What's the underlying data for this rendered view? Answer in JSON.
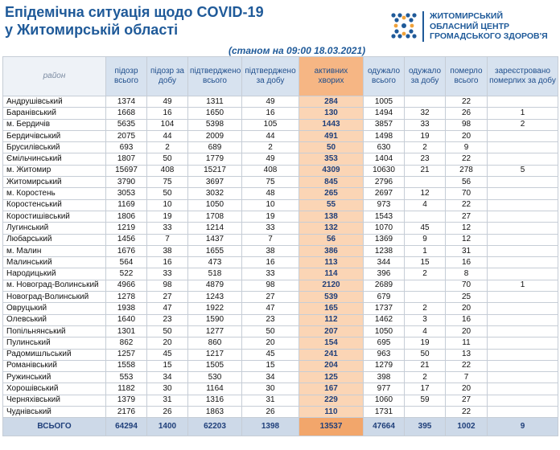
{
  "title_line1": "Епідемічна ситуація щодо COVID-19",
  "title_line2": "у Житомирській області",
  "org_line1": "ЖИТОМИРСЬКИЙ",
  "org_line2": "ОБЛАСНИЙ ЦЕНТР",
  "org_line3": "ГРОМАДСЬКОГО ЗДОРОВ'Я",
  "date": "(станом на 09:00 18.03.2021)",
  "colors": {
    "title": "#1f5a99",
    "header_bg": "#d7e2ef",
    "active_bg": "#fbd5b5",
    "active_header": "#f6b684",
    "total_bg": "#cdd9e8"
  },
  "headers": [
    "район",
    "підозр всього",
    "підозр за добу",
    "підтверджено всього",
    "підтверджено за добу",
    "активних хворих",
    "одужало всього",
    "одужало за добу",
    "померло всього",
    "зареєстровано померлих за добу"
  ],
  "rows": [
    [
      "Андрушівський",
      "1374",
      "49",
      "1311",
      "49",
      "284",
      "1005",
      "",
      "22",
      ""
    ],
    [
      "Баранівський",
      "1668",
      "16",
      "1650",
      "16",
      "130",
      "1494",
      "32",
      "26",
      "1"
    ],
    [
      "м. Бердичів",
      "5635",
      "104",
      "5398",
      "105",
      "1443",
      "3857",
      "33",
      "98",
      "2"
    ],
    [
      "Бердичівський",
      "2075",
      "44",
      "2009",
      "44",
      "491",
      "1498",
      "19",
      "20",
      ""
    ],
    [
      "Брусилівський",
      "693",
      "2",
      "689",
      "2",
      "50",
      "630",
      "2",
      "9",
      ""
    ],
    [
      "Ємільчинський",
      "1807",
      "50",
      "1779",
      "49",
      "353",
      "1404",
      "23",
      "22",
      ""
    ],
    [
      "м. Житомир",
      "15697",
      "408",
      "15217",
      "408",
      "4309",
      "10630",
      "21",
      "278",
      "5"
    ],
    [
      "Житомирський",
      "3790",
      "75",
      "3697",
      "75",
      "845",
      "2796",
      "",
      "56",
      ""
    ],
    [
      "м. Коростень",
      "3053",
      "50",
      "3032",
      "48",
      "265",
      "2697",
      "12",
      "70",
      ""
    ],
    [
      "Коростенський",
      "1169",
      "10",
      "1050",
      "10",
      "55",
      "973",
      "4",
      "22",
      ""
    ],
    [
      "Коростишівський",
      "1806",
      "19",
      "1708",
      "19",
      "138",
      "1543",
      "",
      "27",
      ""
    ],
    [
      "Лугинський",
      "1219",
      "33",
      "1214",
      "33",
      "132",
      "1070",
      "45",
      "12",
      ""
    ],
    [
      "Любарський",
      "1456",
      "7",
      "1437",
      "7",
      "56",
      "1369",
      "9",
      "12",
      ""
    ],
    [
      "м. Малин",
      "1676",
      "38",
      "1655",
      "38",
      "386",
      "1238",
      "1",
      "31",
      ""
    ],
    [
      "Малинський",
      "564",
      "16",
      "473",
      "16",
      "113",
      "344",
      "15",
      "16",
      ""
    ],
    [
      "Народицький",
      "522",
      "33",
      "518",
      "33",
      "114",
      "396",
      "2",
      "8",
      ""
    ],
    [
      "м. Новоград-Волинський",
      "4966",
      "98",
      "4879",
      "98",
      "2120",
      "2689",
      "",
      "70",
      "1"
    ],
    [
      "Новоград-Волинський",
      "1278",
      "27",
      "1243",
      "27",
      "539",
      "679",
      "",
      "25",
      ""
    ],
    [
      "Овруцький",
      "1938",
      "47",
      "1922",
      "47",
      "165",
      "1737",
      "2",
      "20",
      ""
    ],
    [
      "Олевський",
      "1640",
      "23",
      "1590",
      "23",
      "112",
      "1462",
      "3",
      "16",
      ""
    ],
    [
      "Попільнянський",
      "1301",
      "50",
      "1277",
      "50",
      "207",
      "1050",
      "4",
      "20",
      ""
    ],
    [
      "Пулинський",
      "862",
      "20",
      "860",
      "20",
      "154",
      "695",
      "19",
      "11",
      ""
    ],
    [
      "Радомишльський",
      "1257",
      "45",
      "1217",
      "45",
      "241",
      "963",
      "50",
      "13",
      ""
    ],
    [
      "Романівський",
      "1558",
      "15",
      "1505",
      "15",
      "204",
      "1279",
      "21",
      "22",
      ""
    ],
    [
      "Ружинський",
      "553",
      "34",
      "530",
      "34",
      "125",
      "398",
      "2",
      "7",
      ""
    ],
    [
      "Хорошівський",
      "1182",
      "30",
      "1164",
      "30",
      "167",
      "977",
      "17",
      "20",
      ""
    ],
    [
      "Черняхівський",
      "1379",
      "31",
      "1316",
      "31",
      "229",
      "1060",
      "59",
      "27",
      ""
    ],
    [
      "Чуднівський",
      "2176",
      "26",
      "1863",
      "26",
      "110",
      "1731",
      "",
      "22",
      ""
    ]
  ],
  "total": [
    "ВСЬОГО",
    "64294",
    "1400",
    "62203",
    "1398",
    "13537",
    "47664",
    "395",
    "1002",
    "9"
  ]
}
